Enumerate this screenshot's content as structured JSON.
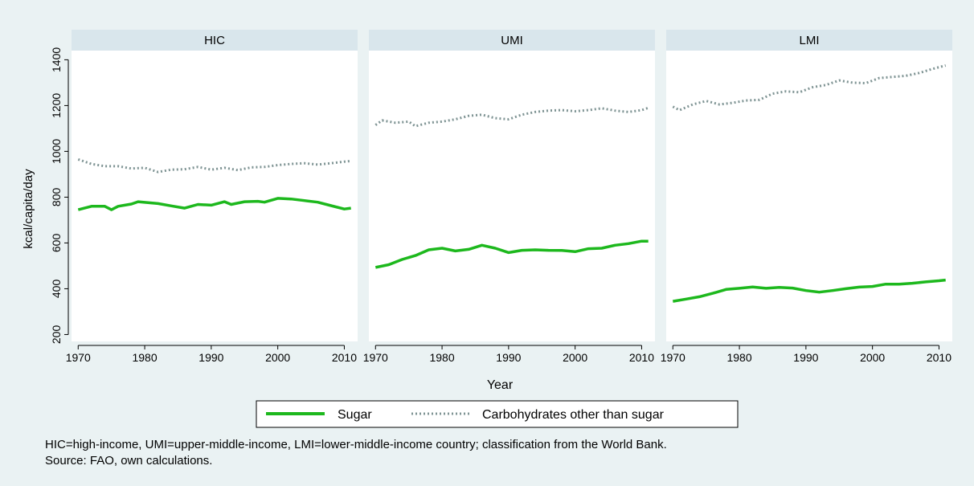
{
  "chart_data": {
    "type": "line",
    "facet_by": "country income group",
    "xlabel": "Year",
    "ylabel": "kcal/capita/day",
    "xlim": [
      1969,
      2012
    ],
    "ylim": [
      170,
      1440
    ],
    "x_ticks": [
      1970,
      1980,
      1990,
      2000,
      2010
    ],
    "y_ticks": [
      200,
      400,
      600,
      800,
      1000,
      1200,
      1400
    ],
    "grid": false,
    "legend": {
      "position": "bottom",
      "entries": [
        {
          "label": "Sugar",
          "color": "#1db81d",
          "style": "solid"
        },
        {
          "label": "Carbohydrates other than sugar",
          "color": "#7f9494",
          "style": "dotted"
        }
      ]
    },
    "panels": [
      {
        "title": "HIC",
        "series": [
          {
            "name": "Sugar",
            "x": [
              1970,
              1972,
              1974,
              1975,
              1976,
              1978,
              1979,
              1982,
              1984,
              1986,
              1988,
              1990,
              1992,
              1993,
              1995,
              1997,
              1998,
              2000,
              2002,
              2004,
              2006,
              2008,
              2010,
              2011
            ],
            "y": [
              745,
              760,
              760,
              745,
              760,
              770,
              780,
              772,
              762,
              752,
              768,
              765,
              780,
              768,
              780,
              782,
              778,
              795,
              792,
              785,
              778,
              763,
              748,
              752
            ]
          },
          {
            "name": "Carbohydrates other than sugar",
            "x": [
              1970,
              1972,
              1974,
              1976,
              1978,
              1980,
              1982,
              1984,
              1986,
              1988,
              1990,
              1992,
              1994,
              1996,
              1998,
              2000,
              2002,
              2004,
              2006,
              2008,
              2010,
              2011
            ],
            "y": [
              965,
              945,
              935,
              935,
              925,
              928,
              910,
              920,
              922,
              932,
              920,
              928,
              918,
              930,
              932,
              940,
              945,
              948,
              942,
              948,
              955,
              958
            ]
          }
        ]
      },
      {
        "title": "UMI",
        "series": [
          {
            "name": "Sugar",
            "x": [
              1970,
              1972,
              1974,
              1976,
              1978,
              1980,
              1982,
              1984,
              1986,
              1988,
              1990,
              1992,
              1994,
              1996,
              1998,
              2000,
              2002,
              2004,
              2006,
              2008,
              2010,
              2011
            ],
            "y": [
              493,
              505,
              528,
              545,
              570,
              577,
              565,
              572,
              590,
              577,
              558,
              568,
              570,
              568,
              567,
              562,
              575,
              577,
              590,
              597,
              608,
              608
            ]
          },
          {
            "name": "Carbohydrates other than sugar",
            "x": [
              1970,
              1971,
              1973,
              1975,
              1976,
              1978,
              1980,
              1982,
              1984,
              1986,
              1988,
              1990,
              1992,
              1994,
              1996,
              1998,
              2000,
              2002,
              2004,
              2006,
              2008,
              2010,
              2011
            ],
            "y": [
              1115,
              1135,
              1125,
              1130,
              1110,
              1125,
              1130,
              1140,
              1155,
              1160,
              1145,
              1140,
              1160,
              1172,
              1178,
              1180,
              1175,
              1180,
              1188,
              1178,
              1172,
              1180,
              1190
            ]
          }
        ]
      },
      {
        "title": "LMI",
        "series": [
          {
            "name": "Sugar",
            "x": [
              1970,
              1972,
              1974,
              1976,
              1978,
              1980,
              1982,
              1984,
              1986,
              1988,
              1990,
              1992,
              1994,
              1996,
              1998,
              2000,
              2002,
              2004,
              2006,
              2008,
              2010,
              2011
            ],
            "y": [
              345,
              355,
              365,
              380,
              397,
              402,
              408,
              402,
              406,
              403,
              392,
              385,
              392,
              400,
              407,
              410,
              420,
              420,
              424,
              430,
              435,
              438
            ]
          },
          {
            "name": "Carbohydrates other than sugar",
            "x": [
              1970,
              1971,
              1973,
              1975,
              1977,
              1979,
              1981,
              1983,
              1985,
              1987,
              1989,
              1991,
              1993,
              1995,
              1997,
              1999,
              2001,
              2003,
              2005,
              2007,
              2009,
              2011
            ],
            "y": [
              1195,
              1180,
              1205,
              1220,
              1205,
              1212,
              1222,
              1225,
              1252,
              1262,
              1258,
              1280,
              1290,
              1310,
              1300,
              1298,
              1320,
              1325,
              1330,
              1342,
              1360,
              1375
            ]
          }
        ]
      }
    ]
  },
  "notes": {
    "line1": "HIC=high-income, UMI=upper-middle-income, LMI=lower-middle-income country; classification from the World Bank.",
    "line2": "Source: FAO, own calculations."
  },
  "colors": {
    "background": "#eaf2f3",
    "panel_header": "#d9e6ec",
    "plot_area": "#ffffff",
    "sugar": "#1db81d",
    "carbs": "#7f9494"
  }
}
